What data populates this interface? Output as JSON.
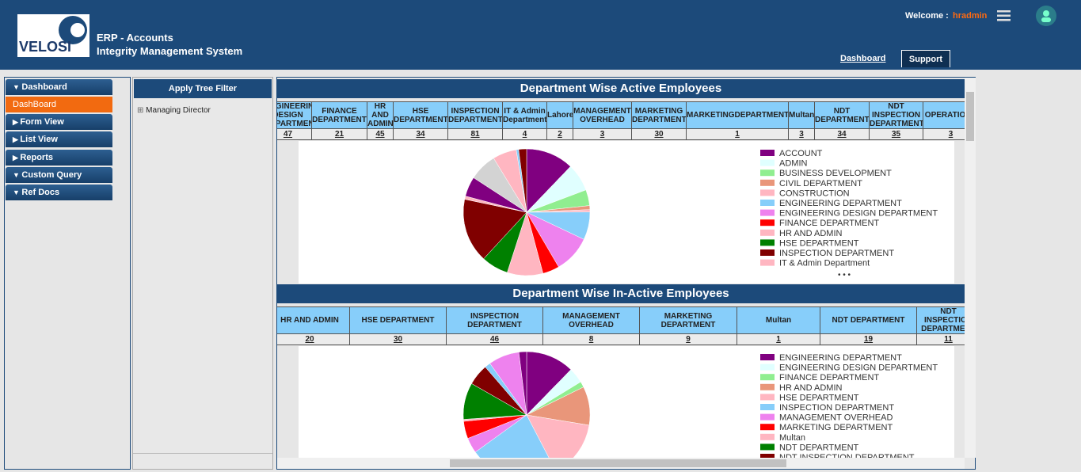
{
  "header": {
    "logo_text": "VELOSI",
    "app_title": "ERP - Accounts",
    "app_subtitle": "Integrity Management System",
    "welcome_label": "Welcome :",
    "username": "hradmin",
    "nav": [
      "Dashboard",
      "Support"
    ]
  },
  "sidebar": {
    "items": [
      {
        "label": "Dashboard",
        "expanded": true
      },
      {
        "label": "DashBoard",
        "active": true
      },
      {
        "label": "Form View",
        "expanded": false
      },
      {
        "label": "List View",
        "expanded": false
      },
      {
        "label": "Reports",
        "expanded": false
      },
      {
        "label": "Custom Query",
        "expanded": true
      },
      {
        "label": "Ref Docs",
        "expanded": true
      }
    ]
  },
  "tree": {
    "title": "Apply Tree Filter",
    "nodes": [
      "Managing Director"
    ]
  },
  "panels": [
    {
      "title": "Department Wise Active Employees",
      "table": {
        "headers": [
          "ENGINEERING DESIGN DEPARTMENT",
          "FINANCE DEPARTMENT",
          "HR AND ADMIN",
          "HSE DEPARTMENT",
          "INSPECTION DEPARTMENT",
          "IT & Admin Department",
          "Lahore",
          "MANAGEMENT OVERHEAD",
          "MARKETING DEPARTMENT",
          "MARKETINGDEPARTMENT",
          "Multan",
          "NDT DEPARTMENT",
          "NDT INSPECTION DEPARTMENT",
          "OPERATIONS"
        ],
        "counts": [
          47,
          21,
          45,
          34,
          81,
          4,
          2,
          3,
          30,
          1,
          3,
          34,
          35,
          3
        ]
      },
      "pie": {
        "slices": [
          {
            "name": "ACCOUNT",
            "color": "#800080",
            "value": 60
          },
          {
            "name": "ADMIN",
            "color": "#e0ffff",
            "value": 35
          },
          {
            "name": "BUSINESS DEVELOPMENT",
            "color": "#90ee90",
            "value": 20
          },
          {
            "name": "CIVIL DEPARTMENT",
            "color": "#e9967a",
            "value": 5
          },
          {
            "name": "CONSTRUCTION",
            "color": "#ffb6c1",
            "value": 3
          },
          {
            "name": "ENGINEERING DEPARTMENT",
            "color": "#87cefa",
            "value": 35
          },
          {
            "name": "ENGINEERING DESIGN DEPARTMENT",
            "color": "#ee82ee",
            "value": 47
          },
          {
            "name": "FINANCE DEPARTMENT",
            "color": "#ff0000",
            "value": 21
          },
          {
            "name": "HR AND ADMIN",
            "color": "#ffb6c1",
            "value": 45
          },
          {
            "name": "HSE DEPARTMENT",
            "color": "#008000",
            "value": 34
          },
          {
            "name": "INSPECTION DEPARTMENT",
            "color": "#800000",
            "value": 81
          },
          {
            "name": "IT & Admin Department",
            "color": "#ffb6c1",
            "value": 4
          },
          {
            "color": "#800080",
            "value": 25
          },
          {
            "color": "#d3d3d3",
            "value": 35
          },
          {
            "color": "#ffb6c1",
            "value": 30
          },
          {
            "color": "#87cefa",
            "value": 3
          },
          {
            "color": "#800000",
            "value": 10
          }
        ]
      },
      "legend_more": "• • •"
    },
    {
      "title": "Department Wise In-Active Employees",
      "table": {
        "headers": [
          "HR AND ADMIN",
          "HSE DEPARTMENT",
          "INSPECTION DEPARTMENT",
          "MANAGEMENT OVERHEAD",
          "MARKETING DEPARTMENT",
          "Multan",
          "NDT DEPARTMENT",
          "NDT INSPECTION DEPARTMENT"
        ],
        "counts": [
          20,
          30,
          46,
          8,
          9,
          1,
          19,
          11
        ]
      },
      "pie": {
        "slices": [
          {
            "name": "ENGINEERING DEPARTMENT",
            "color": "#800080",
            "value": 25
          },
          {
            "name": "ENGINEERING DESIGN DEPARTMENT",
            "color": "#e0ffff",
            "value": 8
          },
          {
            "name": "FINANCE DEPARTMENT",
            "color": "#90ee90",
            "value": 3
          },
          {
            "name": "HR AND ADMIN",
            "color": "#e9967a",
            "value": 20
          },
          {
            "name": "HSE DEPARTMENT",
            "color": "#ffb6c1",
            "value": 30
          },
          {
            "name": "INSPECTION DEPARTMENT",
            "color": "#87cefa",
            "value": 46
          },
          {
            "name": "MANAGEMENT OVERHEAD",
            "color": "#ee82ee",
            "value": 8
          },
          {
            "name": "MARKETING DEPARTMENT",
            "color": "#ff0000",
            "value": 9
          },
          {
            "name": "Multan",
            "color": "#ffb6c1",
            "value": 1
          },
          {
            "name": "NDT DEPARTMENT",
            "color": "#008000",
            "value": 19
          },
          {
            "name": "NDT INSPECTION DEPARTMENT",
            "color": "#800000",
            "value": 11
          },
          {
            "color": "#87cefa",
            "value": 3
          },
          {
            "color": "#ee82ee",
            "value": 16
          },
          {
            "color": "#800080",
            "value": 4
          }
        ]
      }
    }
  ]
}
